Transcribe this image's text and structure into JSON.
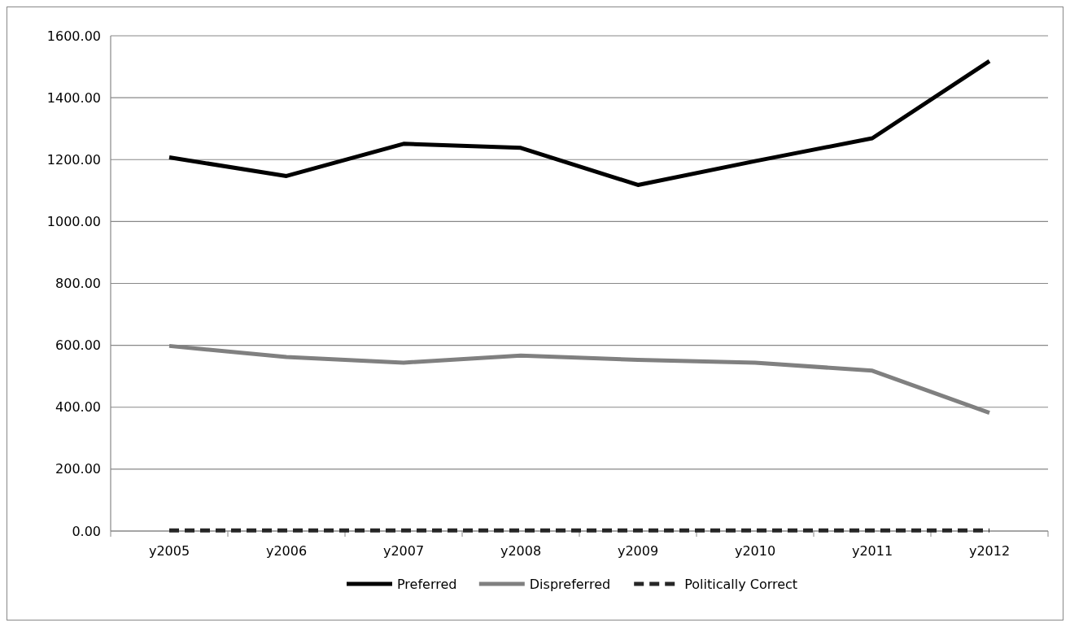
{
  "chart_data": {
    "type": "line",
    "categories": [
      "y2005",
      "y2006",
      "y2007",
      "y2008",
      "y2009",
      "y2010",
      "y2011",
      "y2012"
    ],
    "series": [
      {
        "name": "Preferred",
        "color": "#000000",
        "values": [
          1207,
          1147,
          1251,
          1238,
          1118,
          1195,
          1269,
          1518
        ]
      },
      {
        "name": "Dispreferred",
        "color": "#808080",
        "values": [
          598,
          562,
          544,
          567,
          553,
          544,
          518,
          382
        ]
      },
      {
        "name": "Politically Correct",
        "color": "#262626",
        "line_style": "dashed",
        "values": [
          2,
          2,
          2,
          2,
          2,
          2,
          2,
          2
        ]
      }
    ],
    "ylim": [
      0,
      1600
    ],
    "yticks": [
      {
        "value": 0,
        "label": "0.00"
      },
      {
        "value": 200,
        "label": "200.00"
      },
      {
        "value": 400,
        "label": "400.00"
      },
      {
        "value": 600,
        "label": "600.00"
      },
      {
        "value": 800,
        "label": "800.00"
      },
      {
        "value": 1000,
        "label": "1000.00"
      },
      {
        "value": 1200,
        "label": "1200.00"
      },
      {
        "value": 1400,
        "label": "1400.00"
      },
      {
        "value": 1600,
        "label": "1600.00"
      }
    ],
    "grid": "y",
    "legend": "bottom",
    "line_style": "solid"
  }
}
